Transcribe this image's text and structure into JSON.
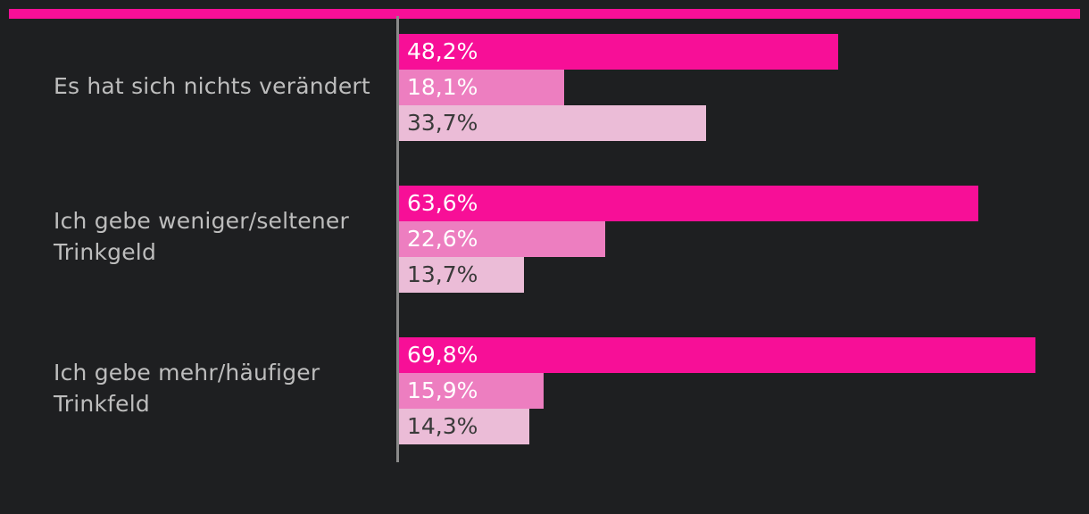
{
  "colors": {
    "background": "#1e1f21",
    "accent": "#f70f97",
    "series": [
      "#f70f97",
      "#ed7ec0",
      "#ebbcd7"
    ],
    "label_light": "#ffffff",
    "label_dark": "#3a3a3a"
  },
  "chart_data": {
    "type": "bar",
    "orientation": "horizontal",
    "title": "",
    "xlabel": "",
    "ylabel": "",
    "xlim": [
      0,
      100
    ],
    "grid": false,
    "legend": "none",
    "categories": [
      "Es hat sich nichts verändert",
      "Ich gebe weniger/seltener Trinkgeld",
      "Ich gebe mehr/häufiger Trinkfeld"
    ],
    "series": [
      {
        "values": [
          48.2,
          63.6,
          69.8
        ],
        "labels": [
          "48,2%",
          "63,6%",
          "69,8%"
        ]
      },
      {
        "values": [
          18.1,
          22.6,
          15.9
        ],
        "labels": [
          "18,1%",
          "22,6%",
          "15,9%"
        ]
      },
      {
        "values": [
          33.7,
          13.7,
          14.3
        ],
        "labels": [
          "33,7%",
          "13,7%",
          "14,3%"
        ]
      }
    ]
  }
}
